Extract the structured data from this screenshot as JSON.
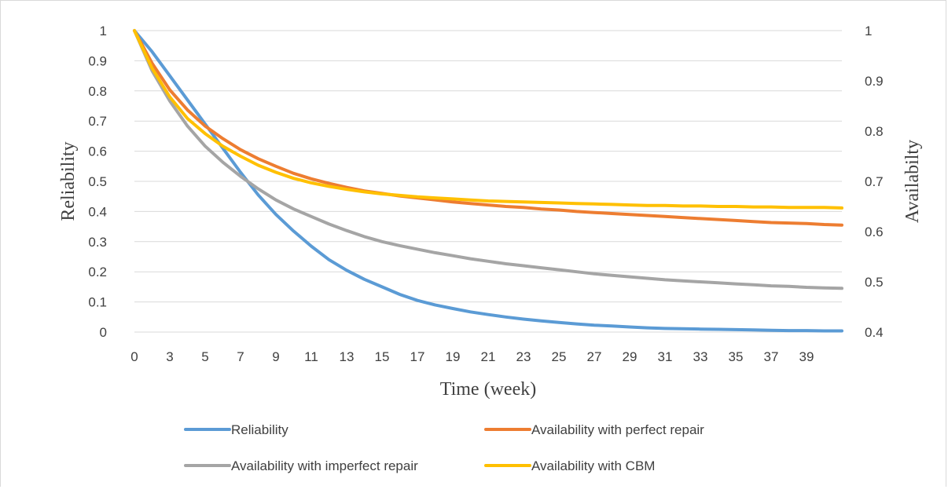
{
  "chart_data": {
    "type": "line",
    "title": "",
    "xlabel": "Time (week)",
    "ylabel": "Reliability",
    "y2label": "Availabilty",
    "xlim": [
      0,
      40
    ],
    "ylim": [
      0,
      1
    ],
    "y2lim": [
      0.4,
      1
    ],
    "x_tick_labels": [
      "0",
      "3",
      "5",
      "7",
      "9",
      "11",
      "13",
      "15",
      "17",
      "19",
      "21",
      "23",
      "25",
      "27",
      "29",
      "31",
      "33",
      "35",
      "37",
      "39"
    ],
    "x_tick_positions": [
      0,
      2,
      4,
      6,
      8,
      10,
      12,
      14,
      16,
      18,
      20,
      22,
      24,
      26,
      28,
      30,
      32,
      34,
      36,
      38
    ],
    "y_tick_labels": [
      "0",
      "0.1",
      "0.2",
      "0.3",
      "0.4",
      "0.5",
      "0.6",
      "0.7",
      "0.8",
      "0.9",
      "1"
    ],
    "y2_tick_labels": [
      "0.4",
      "0.5",
      "0.6",
      "0.7",
      "0.8",
      "0.9",
      "1"
    ],
    "grid": true,
    "legend_position": "bottom",
    "x": [
      0,
      1,
      2,
      3,
      4,
      5,
      6,
      7,
      8,
      9,
      10,
      11,
      12,
      13,
      14,
      15,
      16,
      17,
      18,
      19,
      20,
      21,
      22,
      23,
      24,
      25,
      26,
      27,
      28,
      29,
      30,
      31,
      32,
      33,
      34,
      35,
      36,
      37,
      38,
      39,
      40
    ],
    "series": [
      {
        "name": "Reliability",
        "axis": "left",
        "color": "#5b9bd5",
        "values": [
          1.0,
          0.93,
          0.85,
          0.77,
          0.69,
          0.61,
          0.53,
          0.455,
          0.39,
          0.335,
          0.285,
          0.24,
          0.205,
          0.175,
          0.15,
          0.125,
          0.105,
          0.09,
          0.078,
          0.067,
          0.058,
          0.05,
          0.043,
          0.037,
          0.032,
          0.027,
          0.023,
          0.02,
          0.017,
          0.014,
          0.012,
          0.011,
          0.01,
          0.009,
          0.008,
          0.007,
          0.006,
          0.005,
          0.005,
          0.004,
          0.004
        ]
      },
      {
        "name": "Availability with perfect repair",
        "axis": "right",
        "color": "#ed7d31",
        "values": [
          1.0,
          0.935,
          0.882,
          0.842,
          0.81,
          0.785,
          0.763,
          0.745,
          0.73,
          0.716,
          0.705,
          0.696,
          0.688,
          0.681,
          0.676,
          0.671,
          0.667,
          0.663,
          0.659,
          0.656,
          0.653,
          0.65,
          0.648,
          0.645,
          0.643,
          0.64,
          0.638,
          0.636,
          0.634,
          0.632,
          0.63,
          0.628,
          0.626,
          0.624,
          0.622,
          0.62,
          0.618,
          0.617,
          0.616,
          0.614,
          0.613
        ]
      },
      {
        "name": "Availability with imperfect repair",
        "axis": "right",
        "color": "#a5a5a5",
        "values": [
          1.0,
          0.92,
          0.86,
          0.81,
          0.77,
          0.738,
          0.71,
          0.685,
          0.663,
          0.645,
          0.63,
          0.615,
          0.602,
          0.59,
          0.58,
          0.572,
          0.565,
          0.558,
          0.552,
          0.546,
          0.541,
          0.536,
          0.532,
          0.528,
          0.524,
          0.52,
          0.516,
          0.513,
          0.51,
          0.507,
          0.504,
          0.502,
          0.5,
          0.498,
          0.496,
          0.494,
          0.492,
          0.491,
          0.489,
          0.488,
          0.487
        ]
      },
      {
        "name": "Availability with CBM",
        "axis": "right",
        "color": "#ffc000",
        "values": [
          1.0,
          0.925,
          0.868,
          0.825,
          0.795,
          0.77,
          0.75,
          0.732,
          0.718,
          0.706,
          0.697,
          0.69,
          0.684,
          0.679,
          0.675,
          0.672,
          0.669,
          0.667,
          0.665,
          0.663,
          0.661,
          0.66,
          0.659,
          0.658,
          0.657,
          0.656,
          0.655,
          0.654,
          0.653,
          0.652,
          0.652,
          0.651,
          0.651,
          0.65,
          0.65,
          0.649,
          0.649,
          0.648,
          0.648,
          0.648,
          0.647
        ]
      }
    ]
  }
}
